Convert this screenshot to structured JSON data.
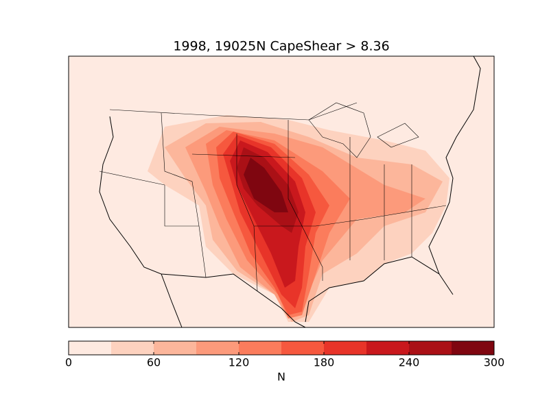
{
  "title": "1998, 19025N CapeShear > 8.36",
  "colorbar": {
    "label": "N",
    "lim": [
      0,
      300
    ],
    "levels": [
      0,
      30,
      60,
      90,
      120,
      150,
      180,
      210,
      240,
      270,
      300
    ],
    "ticks": [
      0,
      60,
      120,
      180,
      240,
      300
    ],
    "colors": [
      "#feeae1",
      "#fdd2bf",
      "#fcb69b",
      "#fc9a7b",
      "#fb7c5c",
      "#f6583e",
      "#e83429",
      "#c9181d",
      "#aa1016",
      "#7f0610"
    ]
  }
}
